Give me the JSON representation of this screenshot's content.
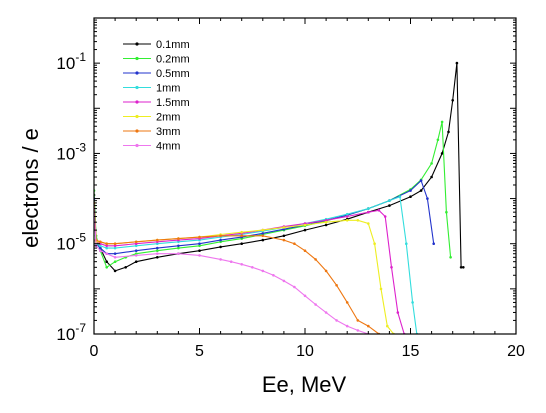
{
  "chart_data": {
    "type": "line",
    "title": "",
    "xlabel": "Ee, MeV",
    "ylabel": "electrons / e",
    "xlim": [
      0,
      20
    ],
    "ylim": [
      1e-07,
      1
    ],
    "y_scale": "log",
    "x_ticks": [
      0,
      5,
      10,
      15,
      20
    ],
    "x_tick_labels": [
      "0",
      "5",
      "10",
      "15",
      "20"
    ],
    "y_ticks": [
      1e-07,
      1e-05,
      0.001,
      0.1
    ],
    "y_tick_labels": [
      {
        "base": "10",
        "exp": "-7"
      },
      {
        "base": "10",
        "exp": "-5"
      },
      {
        "base": "10",
        "exp": "-3"
      },
      {
        "base": "10",
        "exp": "-1"
      }
    ],
    "grid": false,
    "legend_position": "top-left",
    "series": [
      {
        "name": "0.1mm",
        "color": "#000000",
        "x": [
          0,
          0.1,
          0.3,
          0.6,
          1,
          1.5,
          2,
          3,
          4,
          5,
          6,
          7,
          8,
          9,
          10,
          11,
          12,
          13,
          14,
          15,
          15.5,
          16,
          16.5,
          16.8,
          17,
          17.2,
          17.4,
          17.5
        ],
        "y": [
          0.00012,
          1.2e-05,
          8e-06,
          4e-06,
          2.5e-06,
          3e-06,
          4e-06,
          5e-06,
          6e-06,
          7e-06,
          8.5e-06,
          1e-05,
          1.2e-05,
          1.5e-05,
          2e-05,
          2.6e-05,
          3.5e-05,
          5e-05,
          7e-05,
          0.00011,
          0.00015,
          0.0003,
          0.001,
          0.003,
          0.015,
          0.1,
          3e-06,
          3e-06
        ]
      },
      {
        "name": "0.2mm",
        "color": "#33ee33",
        "x": [
          0,
          0.1,
          0.3,
          0.6,
          1,
          1.5,
          2,
          3,
          4,
          5,
          6,
          7,
          8,
          9,
          10,
          11,
          12,
          13,
          14,
          15,
          15.5,
          16,
          16.3,
          16.5,
          16.7,
          16.9
        ],
        "y": [
          0.00015,
          1.5e-05,
          7e-06,
          3e-06,
          4e-06,
          5e-06,
          6e-06,
          7e-06,
          8e-06,
          9e-06,
          1.1e-05,
          1.3e-05,
          1.6e-05,
          2e-05,
          2.5e-05,
          3.2e-05,
          4.3e-05,
          6e-05,
          9e-05,
          0.00016,
          0.00026,
          0.0006,
          0.002,
          0.005,
          5e-05,
          5e-06
        ]
      },
      {
        "name": "0.5mm",
        "color": "#2233cc",
        "x": [
          0,
          0.1,
          0.3,
          0.6,
          1,
          2,
          3,
          4,
          5,
          6,
          7,
          8,
          9,
          10,
          11,
          12,
          13,
          14,
          15,
          15.5,
          15.8,
          16.1
        ],
        "y": [
          0.0001,
          1e-05,
          8e-06,
          6e-06,
          6e-06,
          7e-06,
          8e-06,
          9e-06,
          1e-05,
          1.2e-05,
          1.4e-05,
          1.7e-05,
          2.1e-05,
          2.6e-05,
          3.3e-05,
          4.3e-05,
          6e-05,
          9e-05,
          0.00015,
          0.00025,
          0.0001,
          1e-05
        ]
      },
      {
        "name": "1mm",
        "color": "#33dddd",
        "x": [
          0,
          0.1,
          0.3,
          0.6,
          1,
          2,
          3,
          4,
          5,
          6,
          7,
          8,
          9,
          10,
          11,
          12,
          13,
          14,
          14.5,
          14.8,
          15.1,
          15.3
        ],
        "y": [
          8e-05,
          1e-05,
          9e-06,
          8e-06,
          8e-06,
          9e-06,
          1e-05,
          1.1e-05,
          1.2e-05,
          1.4e-05,
          1.6e-05,
          1.9e-05,
          2.3e-05,
          2.8e-05,
          3.5e-05,
          4.5e-05,
          6e-05,
          9e-05,
          0.00011,
          1e-05,
          5e-07,
          1e-07
        ]
      },
      {
        "name": "1.5mm",
        "color": "#dd22cc",
        "x": [
          0,
          0.1,
          0.3,
          0.6,
          1,
          2,
          3,
          4,
          5,
          6,
          7,
          8,
          9,
          10,
          11,
          12,
          13,
          13.5,
          13.8,
          14.1,
          14.4,
          14.7
        ],
        "y": [
          8e-05,
          1.1e-05,
          1e-05,
          9e-06,
          9e-06,
          1e-05,
          1.1e-05,
          1.2e-05,
          1.3e-05,
          1.5e-05,
          1.7e-05,
          2e-05,
          2.4e-05,
          2.8e-05,
          3.3e-05,
          4e-05,
          5e-05,
          5.5e-05,
          4e-05,
          3e-06,
          3e-07,
          1e-07
        ]
      },
      {
        "name": "2mm",
        "color": "#eeee22",
        "x": [
          0,
          0.1,
          0.3,
          0.6,
          1,
          2,
          3,
          4,
          5,
          6,
          7,
          8,
          9,
          10,
          11,
          12,
          12.5,
          13,
          13.3,
          13.6,
          13.9,
          14.2
        ],
        "y": [
          8e-05,
          1.1e-05,
          1.1e-05,
          1e-05,
          1e-05,
          1.1e-05,
          1.2e-05,
          1.3e-05,
          1.4e-05,
          1.6e-05,
          1.8e-05,
          2e-05,
          2.3e-05,
          2.6e-05,
          3e-05,
          3.3e-05,
          3.3e-05,
          2.8e-05,
          1e-05,
          1e-06,
          1.5e-07,
          1e-07
        ]
      },
      {
        "name": "3mm",
        "color": "#ee7711",
        "x": [
          0,
          0.1,
          0.3,
          0.6,
          1,
          2,
          3,
          4,
          5,
          6,
          7,
          8,
          9,
          9.5,
          10,
          10.5,
          11,
          11.5,
          12,
          12.5,
          13,
          13.5
        ],
        "y": [
          8e-05,
          1.2e-05,
          1.1e-05,
          1e-05,
          1e-05,
          1.1e-05,
          1.2e-05,
          1.3e-05,
          1.4e-05,
          1.5e-05,
          1.5e-05,
          1.5e-05,
          1.2e-05,
          1e-05,
          7e-06,
          4.5e-06,
          2.5e-06,
          1.2e-06,
          5e-07,
          2e-07,
          1.5e-07,
          1e-07
        ]
      },
      {
        "name": "4mm",
        "color": "#ee77ee",
        "x": [
          0,
          0.1,
          0.3,
          0.6,
          1,
          2,
          3,
          4,
          5,
          6,
          6.5,
          7,
          7.5,
          8,
          8.5,
          9,
          9.5,
          10,
          10.5,
          11,
          11.5,
          12,
          12.5,
          13
        ],
        "y": [
          6e-05,
          9e-06,
          7e-06,
          6e-06,
          5e-06,
          5.5e-06,
          6e-06,
          6e-06,
          5.5e-06,
          4.5e-06,
          4e-06,
          3.5e-06,
          3e-06,
          2.5e-06,
          2e-06,
          1.5e-06,
          1.1e-06,
          7e-07,
          4.5e-07,
          3e-07,
          2e-07,
          1.5e-07,
          1.2e-07,
          1e-07
        ]
      }
    ]
  }
}
